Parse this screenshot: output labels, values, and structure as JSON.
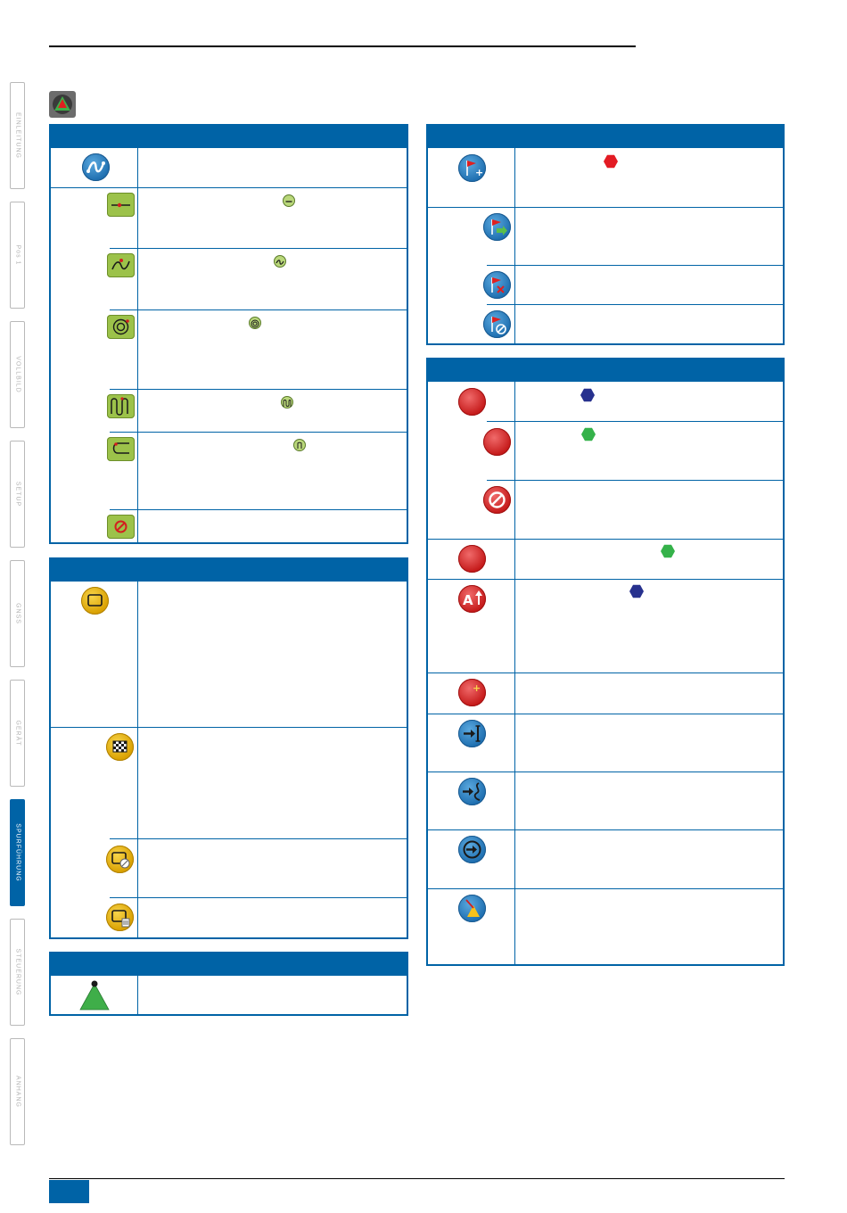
{
  "side_tabs": [
    {
      "label": "EINLEITUNG",
      "active": false
    },
    {
      "label": "Pos 1",
      "active": false
    },
    {
      "label": "VOLLBILD",
      "active": false
    },
    {
      "label": "SETUP",
      "active": false
    },
    {
      "label": "GNSS",
      "active": false
    },
    {
      "label": "GERÄT",
      "active": false
    },
    {
      "label": "SPURFÜHRUNG",
      "active": true
    },
    {
      "label": "STEUERUNG",
      "active": false
    },
    {
      "label": "ANHANG",
      "active": false
    }
  ],
  "colors": {
    "accent_blue": "#0063a6",
    "hex_red": "#e31b23",
    "hex_green": "#35b24a",
    "hex_navy": "#27318e"
  },
  "icons": {
    "header": "guidance-triangle-icon",
    "guidance_mode": [
      "curve-guidance-icon",
      "straight-ab-icon",
      "a-plus-curve-icon",
      "circle-pivot-icon",
      "adaptive-curve-icon",
      "last-pass-icon",
      "no-guidance-icon"
    ],
    "boundary": [
      "boundary-icon",
      "finish-boundary-icon",
      "cancel-boundary-icon",
      "delete-boundary-icon"
    ],
    "vehicle": [
      "vehicle-triangle-icon"
    ],
    "marker": [
      "add-marker-flag-icon",
      "marker-navigate-icon",
      "delete-marker-icon",
      "cancel-marker-icon"
    ],
    "guideline": [
      "mark-a-icon",
      "mark-b-icon",
      "cancel-mark-icon",
      "set-point-icon",
      "a-plus-nudge-icon",
      "add-guideline-icon",
      "shift-guideline-icon",
      "next-guideline-icon",
      "return-to-point-icon",
      "steering-icon"
    ]
  }
}
